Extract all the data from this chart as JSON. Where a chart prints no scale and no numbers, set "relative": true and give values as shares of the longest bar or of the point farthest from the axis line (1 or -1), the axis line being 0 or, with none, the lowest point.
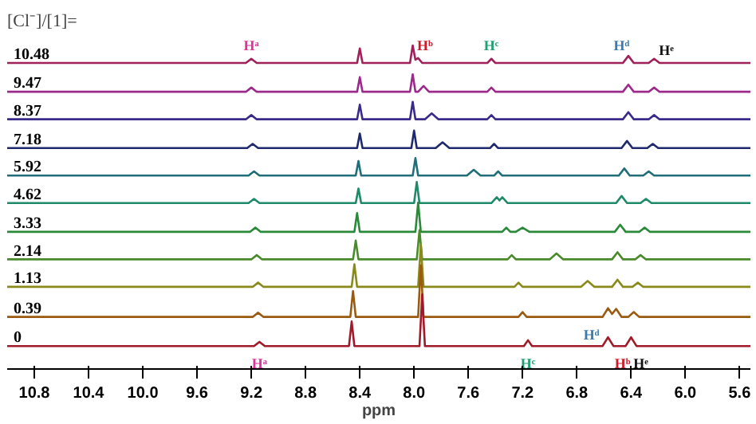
{
  "chart_data": {
    "type": "line",
    "title": "[Cl⁻]/[1]=",
    "xlabel": "ppm",
    "relative": true,
    "xlim": [
      11.0,
      5.52
    ],
    "xticks": [
      10.8,
      10.4,
      {
        "value": 10,
        "label": "10.0"
      },
      9.6,
      9.2,
      8.8,
      8.4,
      {
        "value": 8,
        "label": "8.0"
      },
      7.6,
      7.2,
      6.8,
      6.4,
      {
        "value": 6,
        "label": "6.0"
      },
      5.6
    ],
    "series": [
      {
        "name": "10.48",
        "color": "#a0205a",
        "x": [
          11.0,
          9.24,
          9.2,
          9.16,
          8.42,
          8.4,
          8.38,
          8.03,
          8.01,
          7.99,
          7.97,
          7.94,
          7.46,
          7.43,
          7.4,
          6.46,
          6.42,
          6.38,
          6.27,
          6.23,
          6.19,
          5.52
        ],
        "values": [
          0.946,
          0.946,
          0.959,
          0.946,
          0.946,
          0.991,
          0.946,
          0.946,
          1.0,
          0.956,
          0.961,
          0.946,
          0.946,
          0.959,
          0.946,
          0.946,
          0.968,
          0.946,
          0.946,
          0.959,
          0.946,
          0.946
        ]
      },
      {
        "name": "9.47",
        "color": "#9b2a8a",
        "x": [
          11.0,
          9.24,
          9.2,
          9.16,
          8.42,
          8.4,
          8.38,
          8.03,
          8.01,
          7.99,
          7.97,
          7.93,
          7.89,
          7.46,
          7.43,
          7.4,
          6.46,
          6.42,
          6.38,
          6.27,
          6.23,
          6.19,
          5.52
        ],
        "values": [
          0.857,
          0.857,
          0.87,
          0.857,
          0.857,
          0.902,
          0.857,
          0.857,
          0.911,
          0.857,
          0.857,
          0.875,
          0.857,
          0.857,
          0.87,
          0.857,
          0.857,
          0.879,
          0.857,
          0.857,
          0.87,
          0.857,
          0.857
        ]
      },
      {
        "name": "8.37",
        "color": "#3a2a8a",
        "x": [
          11.0,
          9.24,
          9.2,
          9.16,
          8.42,
          8.4,
          8.38,
          8.03,
          8.01,
          7.99,
          7.92,
          7.87,
          7.82,
          7.46,
          7.43,
          7.4,
          6.46,
          6.42,
          6.38,
          6.27,
          6.23,
          6.19,
          5.52
        ],
        "values": [
          0.772,
          0.772,
          0.785,
          0.772,
          0.772,
          0.817,
          0.772,
          0.772,
          0.826,
          0.772,
          0.772,
          0.79,
          0.772,
          0.772,
          0.785,
          0.772,
          0.772,
          0.794,
          0.772,
          0.772,
          0.785,
          0.772,
          0.772
        ]
      },
      {
        "name": "7.18",
        "color": "#1f2a6e",
        "x": [
          11.0,
          9.23,
          9.19,
          9.15,
          8.42,
          8.4,
          8.38,
          8.02,
          8.0,
          7.98,
          7.84,
          7.79,
          7.74,
          7.44,
          7.41,
          7.38,
          6.47,
          6.43,
          6.39,
          6.28,
          6.24,
          6.2,
          5.52
        ],
        "values": [
          0.683,
          0.683,
          0.696,
          0.683,
          0.683,
          0.728,
          0.683,
          0.683,
          0.737,
          0.683,
          0.683,
          0.701,
          0.683,
          0.683,
          0.696,
          0.683,
          0.683,
          0.705,
          0.683,
          0.683,
          0.696,
          0.683,
          0.683
        ]
      },
      {
        "name": "5.92",
        "color": "#1f6e7a",
        "x": [
          11.0,
          9.22,
          9.18,
          9.14,
          8.43,
          8.41,
          8.39,
          8.01,
          7.99,
          7.97,
          7.61,
          7.56,
          7.51,
          7.41,
          7.38,
          7.35,
          6.49,
          6.45,
          6.41,
          6.31,
          6.27,
          6.23,
          5.52
        ],
        "values": [
          0.598,
          0.598,
          0.611,
          0.598,
          0.598,
          0.643,
          0.598,
          0.598,
          0.652,
          0.598,
          0.598,
          0.616,
          0.598,
          0.598,
          0.611,
          0.598,
          0.598,
          0.62,
          0.598,
          0.598,
          0.611,
          0.598,
          0.598
        ]
      },
      {
        "name": "4.62",
        "color": "#1f8a6a",
        "x": [
          11.0,
          9.22,
          9.18,
          9.14,
          8.43,
          8.41,
          8.39,
          8.0,
          7.98,
          7.96,
          7.43,
          7.39,
          7.37,
          7.35,
          7.31,
          6.51,
          6.47,
          6.43,
          6.33,
          6.29,
          6.25,
          5.52
        ],
        "values": [
          0.513,
          0.513,
          0.526,
          0.513,
          0.513,
          0.558,
          0.513,
          0.513,
          0.578,
          0.513,
          0.513,
          0.531,
          0.521,
          0.531,
          0.513,
          0.513,
          0.535,
          0.513,
          0.513,
          0.526,
          0.513,
          0.513
        ]
      },
      {
        "name": "3.33",
        "color": "#2a8a3a",
        "x": [
          11.0,
          9.21,
          9.17,
          9.13,
          8.44,
          8.42,
          8.4,
          7.99,
          7.97,
          7.95,
          7.35,
          7.32,
          7.29,
          7.25,
          7.2,
          7.15,
          6.52,
          6.48,
          6.44,
          6.34,
          6.3,
          6.26,
          5.52
        ],
        "values": [
          0.424,
          0.424,
          0.437,
          0.424,
          0.424,
          0.482,
          0.424,
          0.424,
          0.514,
          0.424,
          0.424,
          0.437,
          0.424,
          0.424,
          0.437,
          0.424,
          0.424,
          0.446,
          0.424,
          0.424,
          0.437,
          0.424,
          0.424
        ]
      },
      {
        "name": "2.14",
        "color": "#4a8a2a",
        "x": [
          11.0,
          9.2,
          9.16,
          9.12,
          8.45,
          8.43,
          8.41,
          7.98,
          7.96,
          7.94,
          7.31,
          7.28,
          7.25,
          7.0,
          6.95,
          6.9,
          6.54,
          6.5,
          6.46,
          6.37,
          6.33,
          6.29,
          5.52
        ],
        "values": [
          0.339,
          0.339,
          0.352,
          0.339,
          0.339,
          0.397,
          0.339,
          0.339,
          0.429,
          0.339,
          0.339,
          0.352,
          0.339,
          0.339,
          0.357,
          0.339,
          0.339,
          0.361,
          0.339,
          0.339,
          0.352,
          0.339,
          0.339
        ]
      },
      {
        "name": "1.13",
        "color": "#8a8a1a",
        "x": [
          11.0,
          9.19,
          9.15,
          9.11,
          8.46,
          8.44,
          8.42,
          7.97,
          7.95,
          7.93,
          7.26,
          7.23,
          7.2,
          6.77,
          6.72,
          6.67,
          6.54,
          6.5,
          6.46,
          6.39,
          6.35,
          6.31,
          5.52
        ],
        "values": [
          0.254,
          0.254,
          0.267,
          0.254,
          0.254,
          0.324,
          0.254,
          0.254,
          0.384,
          0.254,
          0.254,
          0.267,
          0.254,
          0.254,
          0.272,
          0.254,
          0.254,
          0.276,
          0.254,
          0.254,
          0.267,
          0.254,
          0.254
        ]
      },
      {
        "name": "0.39",
        "color": "#9a5a10",
        "x": [
          11.0,
          9.19,
          9.15,
          9.11,
          8.47,
          8.45,
          8.43,
          7.97,
          7.95,
          7.93,
          7.23,
          7.2,
          7.17,
          6.61,
          6.57,
          6.54,
          6.51,
          6.47,
          6.42,
          6.38,
          6.34,
          5.52
        ],
        "values": [
          0.161,
          0.161,
          0.174,
          0.161,
          0.161,
          0.241,
          0.161,
          0.161,
          0.321,
          0.161,
          0.161,
          0.176,
          0.161,
          0.161,
          0.188,
          0.17,
          0.186,
          0.161,
          0.161,
          0.176,
          0.161,
          0.161
        ]
      },
      {
        "name": "0",
        "color": "#a01a2a",
        "x": [
          11.0,
          9.18,
          9.14,
          9.1,
          8.48,
          8.46,
          8.44,
          7.96,
          7.94,
          7.92,
          7.19,
          7.16,
          7.13,
          6.61,
          6.57,
          6.53,
          6.44,
          6.4,
          6.36,
          5.52
        ],
        "values": [
          0.071,
          0.071,
          0.084,
          0.071,
          0.071,
          0.147,
          0.071,
          0.071,
          0.231,
          0.071,
          0.071,
          0.089,
          0.071,
          0.071,
          0.098,
          0.071,
          0.071,
          0.098,
          0.071,
          0.071
        ]
      }
    ],
    "annotations": [
      {
        "text": "Hᵃ",
        "x": 9.2,
        "y": 0.975
      },
      {
        "text": "Hᵇ",
        "x": 7.92,
        "y": 0.975
      },
      {
        "text": "Hᶜ",
        "x": 7.43,
        "y": 0.975
      },
      {
        "text": "Hᵈ",
        "x": 6.47,
        "y": 0.975
      },
      {
        "text": "Hᵉ",
        "x": 6.14,
        "y": 0.96
      },
      {
        "text": "Hᵃ",
        "x": 9.14,
        "y": 0.071
      },
      {
        "text": "Hᶜ",
        "x": 7.16,
        "y": 0.071
      },
      {
        "text": "Hᵈ",
        "x": 6.61,
        "y": 0.071
      },
      {
        "text": "Hᵇ",
        "x": 6.44,
        "y": 0.071
      },
      {
        "text": "Hᵉ",
        "x": 6.36,
        "y": 0.071
      }
    ]
  }
}
